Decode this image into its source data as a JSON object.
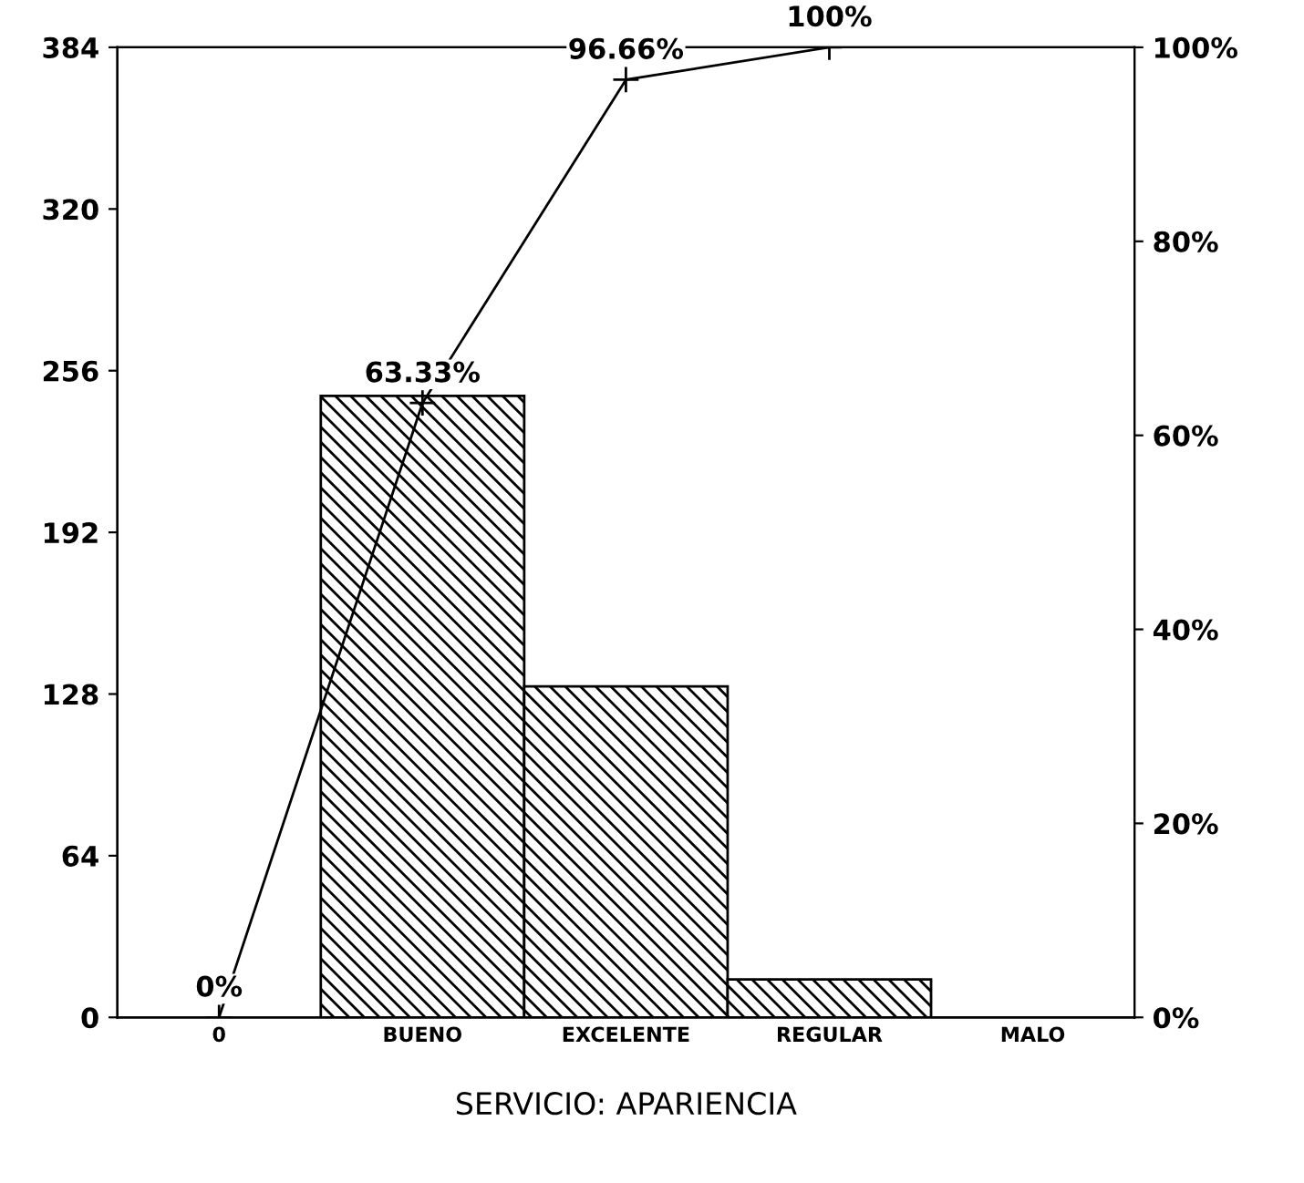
{
  "chart_data": {
    "type": "bar",
    "xlabel": "SERVICIO: APARIENCIA",
    "categories": [
      "0",
      "BUENO",
      "EXCELENTE",
      "REGULAR",
      "MALO"
    ],
    "series": [
      {
        "color": "#000000",
        "values": [
          null,
          246,
          131,
          15,
          0
        ]
      },
      {
        "type": "line",
        "axis": "y2",
        "color": "#000000",
        "marker": "cross",
        "line_style": "solid",
        "values": [
          0,
          63.33,
          96.66,
          100,
          null
        ],
        "value_labels": [
          "0%",
          "63.33%",
          "96.66%",
          "100%",
          null
        ]
      }
    ],
    "ylim": [
      0,
      384
    ],
    "yticks": [
      0,
      64,
      128,
      192,
      256,
      320,
      384
    ],
    "y2lim": [
      0,
      100
    ],
    "y2ticks": [
      {
        "value": 0,
        "label": "0%"
      },
      {
        "value": 20,
        "label": "20%"
      },
      {
        "value": 40,
        "label": "40%"
      },
      {
        "value": 60,
        "label": "60%"
      },
      {
        "value": 80,
        "label": "80%"
      },
      {
        "value": 100,
        "label": "100%"
      }
    ]
  }
}
